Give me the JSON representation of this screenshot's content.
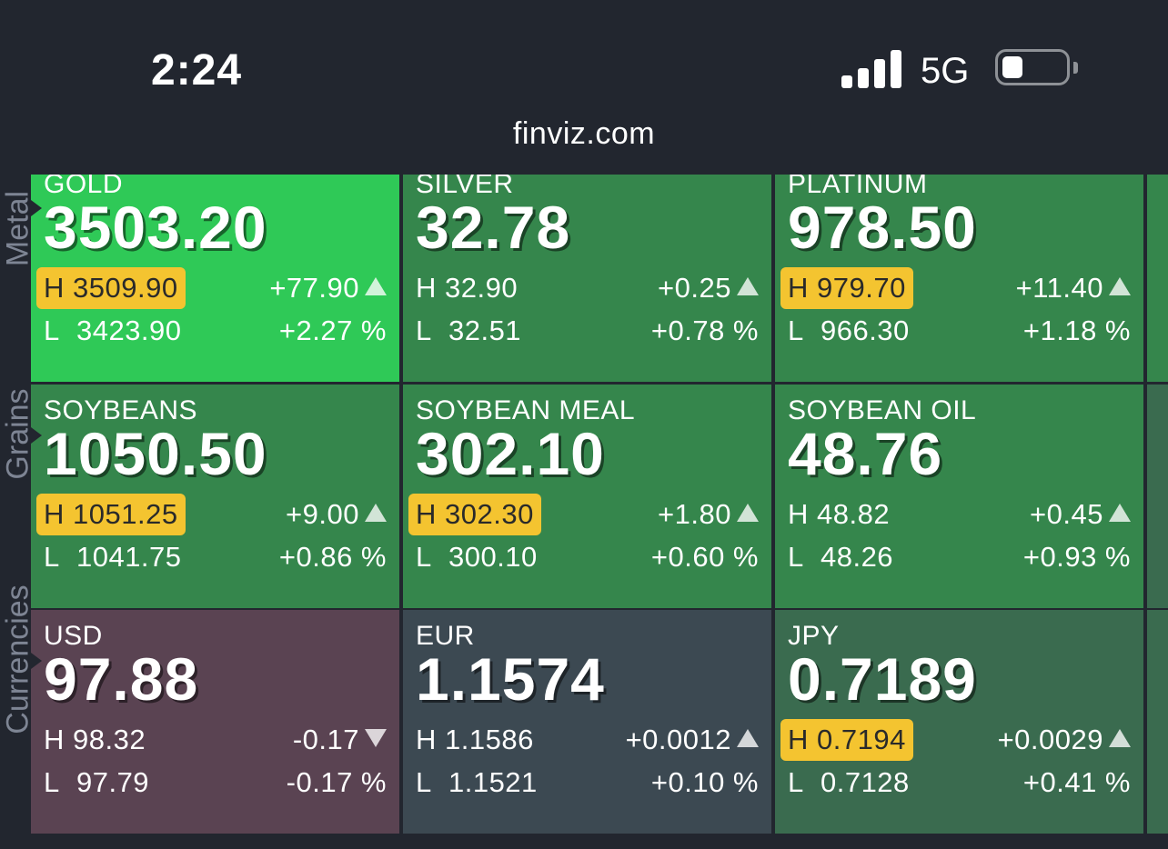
{
  "status_bar": {
    "time": "2:24",
    "network": "5G"
  },
  "browser": {
    "url": "finviz.com"
  },
  "colors": {
    "bright_green": "#2fc957",
    "green": "#35864c",
    "gray": "#3c4952",
    "maroon": "#5a4352",
    "high_badge": "#f4c430",
    "dark_green": "#3a6b4f"
  },
  "rows": [
    {
      "label": "Metal",
      "tiles": [
        {
          "name": "GOLD",
          "price": "3503.20",
          "high": "3509.90",
          "low": "3423.90",
          "change": "+77.90",
          "change_pct": "+2.27 %",
          "direction": "up",
          "high_badge": true,
          "color": "#2fc957"
        },
        {
          "name": "SILVER",
          "price": "32.78",
          "high": "32.90",
          "low": "32.51",
          "change": "+0.25",
          "change_pct": "+0.78 %",
          "direction": "up",
          "high_badge": false,
          "color": "#35864c"
        },
        {
          "name": "PLATINUM",
          "price": "978.50",
          "high": "979.70",
          "low": "966.30",
          "change": "+11.40",
          "change_pct": "+1.18 %",
          "direction": "up",
          "high_badge": true,
          "color": "#35864c"
        }
      ]
    },
    {
      "label": "Grains",
      "tiles": [
        {
          "name": "SOYBEANS",
          "price": "1050.50",
          "high": "1051.25",
          "low": "1041.75",
          "change": "+9.00",
          "change_pct": "+0.86 %",
          "direction": "up",
          "high_badge": true,
          "color": "#35864c"
        },
        {
          "name": "SOYBEAN MEAL",
          "price": "302.10",
          "high": "302.30",
          "low": "300.10",
          "change": "+1.80",
          "change_pct": "+0.60 %",
          "direction": "up",
          "high_badge": true,
          "color": "#35864c"
        },
        {
          "name": "SOYBEAN OIL",
          "price": "48.76",
          "high": "48.82",
          "low": "48.26",
          "change": "+0.45",
          "change_pct": "+0.93 %",
          "direction": "up",
          "high_badge": false,
          "color": "#35864c"
        }
      ]
    },
    {
      "label": "Currencies",
      "tiles": [
        {
          "name": "USD",
          "price": "97.88",
          "high": "98.32",
          "low": "97.79",
          "change": "-0.17",
          "change_pct": "-0.17 %",
          "direction": "down",
          "high_badge": false,
          "color": "#5a4352"
        },
        {
          "name": "EUR",
          "price": "1.1574",
          "high": "1.1586",
          "low": "1.1521",
          "change": "+0.0012",
          "change_pct": "+0.10 %",
          "direction": "up",
          "high_badge": false,
          "color": "#3c4952"
        },
        {
          "name": "JPY",
          "price": "0.7189",
          "high": "0.7194",
          "low": "0.7128",
          "change": "+0.0029",
          "change_pct": "+0.41 %",
          "direction": "up",
          "high_badge": true,
          "color": "#3a6b4f"
        }
      ]
    }
  ]
}
